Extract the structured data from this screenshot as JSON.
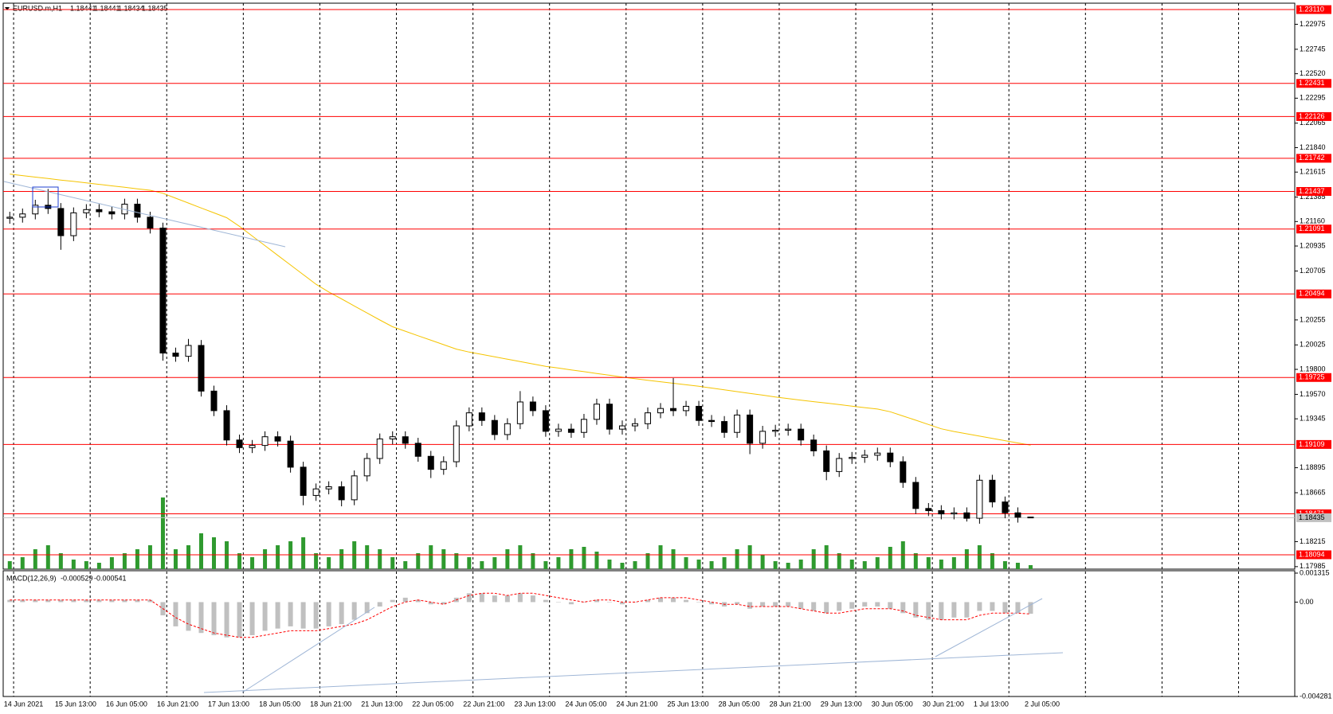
{
  "chart_data": {
    "type": "candlestick",
    "title": "EURUSD.m,H1",
    "categories": [
      "14 Jun 2021",
      null,
      null,
      null,
      "15 Jun 13:00",
      null,
      null,
      null,
      "16 Jun 05:00",
      null,
      null,
      null,
      "16 Jun 21:00",
      null,
      null,
      null,
      "17 Jun 13:00",
      null,
      null,
      null,
      "18 Jun 05:00",
      null,
      null,
      null,
      "18 Jun 21:00",
      null,
      null,
      null,
      "21 Jun 13:00",
      null,
      null,
      null,
      "22 Jun 05:00",
      null,
      null,
      null,
      "22 Jun 21:00",
      null,
      null,
      null,
      "23 Jun 13:00",
      null,
      null,
      null,
      "24 Jun 05:00",
      null,
      null,
      null,
      "24 Jun 21:00",
      null,
      null,
      null,
      "25 Jun 13:00",
      null,
      null,
      null,
      "28 Jun 05:00",
      null,
      null,
      null,
      "28 Jun 21:00",
      null,
      null,
      null,
      "29 Jun 13:00",
      null,
      null,
      null,
      "30 Jun 05:00",
      null,
      null,
      null,
      "30 Jun 21:00",
      null,
      null,
      null,
      "1 Jul 13:00",
      null,
      null,
      null,
      "2 Jul 05:00"
    ],
    "open": [
      1.2119,
      1.212,
      1.2123,
      1.2131,
      1.2128,
      1.2103,
      1.2124,
      1.2127,
      1.2125,
      1.2123,
      1.2132,
      1.212,
      1.211,
      1.1995,
      1.1992,
      1.2002,
      1.196,
      1.1942,
      1.1915,
      1.1908,
      1.191,
      1.1918,
      1.1914,
      1.189,
      1.1864,
      1.187,
      1.1872,
      1.186,
      1.1882,
      1.1898,
      1.1916,
      1.1918,
      1.1912,
      1.19,
      1.1888,
      1.1895,
      1.1928,
      1.194,
      1.1933,
      1.192,
      1.193,
      1.195,
      1.1942,
      1.1923,
      1.1925,
      1.1922,
      1.1934,
      1.1948,
      1.1925,
      1.1928,
      1.193,
      1.194,
      1.1944,
      1.1942,
      1.1946,
      1.1933,
      1.1932,
      1.1922,
      1.1938,
      1.1912,
      1.1923,
      1.1924,
      1.1925,
      1.1915,
      1.1905,
      1.1886,
      1.1898,
      1.1899,
      1.1901,
      1.1903,
      1.1895,
      1.1876,
      1.1852,
      1.185,
      1.1847,
      1.1848,
      1.1843,
      1.1878,
      1.1858,
      1.1848,
      1.18441
    ],
    "high": [
      1.2125,
      1.2128,
      1.2136,
      1.2146,
      1.2133,
      1.2129,
      1.2132,
      1.2132,
      1.213,
      1.2137,
      1.2137,
      1.2125,
      1.2115,
      1.2,
      1.2008,
      1.2007,
      1.1965,
      1.1947,
      1.192,
      1.1915,
      1.1923,
      1.1923,
      1.1919,
      1.1895,
      1.1875,
      1.1877,
      1.1877,
      1.1887,
      1.1903,
      1.1921,
      1.1923,
      1.1923,
      1.1917,
      1.1905,
      1.19,
      1.1933,
      1.1945,
      1.1945,
      1.1938,
      1.1935,
      1.196,
      1.1955,
      1.1947,
      1.193,
      1.193,
      1.1939,
      1.1953,
      1.1953,
      1.1933,
      1.1935,
      1.1945,
      1.1949,
      1.1972,
      1.1951,
      1.1951,
      1.1938,
      1.1937,
      1.1943,
      1.1943,
      1.1928,
      1.1929,
      1.193,
      1.193,
      1.192,
      1.191,
      1.1903,
      1.1904,
      1.1906,
      1.1908,
      1.1908,
      1.19,
      1.1881,
      1.1857,
      1.1855,
      1.1853,
      1.1853,
      1.1883,
      1.1883,
      1.1863,
      1.1853,
      1.18441
    ],
    "low": [
      1.2114,
      1.2115,
      1.2118,
      1.2123,
      1.209,
      1.2098,
      1.2119,
      1.212,
      1.2118,
      1.2118,
      1.2115,
      1.2105,
      1.1988,
      1.1987,
      1.1987,
      1.1955,
      1.1937,
      1.191,
      1.1903,
      1.1903,
      1.1905,
      1.1909,
      1.1885,
      1.1855,
      1.1859,
      1.1865,
      1.1854,
      1.1855,
      1.1877,
      1.1893,
      1.1911,
      1.1907,
      1.1895,
      1.188,
      1.1883,
      1.189,
      1.1923,
      1.1928,
      1.1915,
      1.1915,
      1.1925,
      1.1937,
      1.1918,
      1.1918,
      1.1917,
      1.1917,
      1.1929,
      1.192,
      1.192,
      1.1923,
      1.1925,
      1.1935,
      1.1937,
      1.1937,
      1.1928,
      1.1927,
      1.1917,
      1.1917,
      1.1902,
      1.1907,
      1.1918,
      1.1919,
      1.191,
      1.19,
      1.1878,
      1.1881,
      1.1893,
      1.1894,
      1.1896,
      1.189,
      1.1871,
      1.1847,
      1.1845,
      1.1842,
      1.1842,
      1.184,
      1.1838,
      1.1853,
      1.1843,
      1.1839,
      1.18434
    ],
    "close": [
      1.212,
      1.2123,
      1.2131,
      1.2128,
      1.2103,
      1.2124,
      1.2127,
      1.2125,
      1.2123,
      1.2132,
      1.212,
      1.211,
      1.1995,
      1.1992,
      1.2002,
      1.196,
      1.1942,
      1.1915,
      1.1908,
      1.191,
      1.1918,
      1.1914,
      1.189,
      1.1864,
      1.187,
      1.1872,
      1.186,
      1.1882,
      1.1898,
      1.1916,
      1.1918,
      1.1912,
      1.19,
      1.1888,
      1.1895,
      1.1928,
      1.194,
      1.1933,
      1.192,
      1.193,
      1.195,
      1.1942,
      1.1923,
      1.1925,
      1.1922,
      1.1934,
      1.1948,
      1.1925,
      1.1928,
      1.193,
      1.194,
      1.1944,
      1.1942,
      1.1946,
      1.1933,
      1.1932,
      1.1922,
      1.1938,
      1.1912,
      1.1923,
      1.1924,
      1.1925,
      1.1915,
      1.1905,
      1.1886,
      1.1898,
      1.1899,
      1.1901,
      1.1903,
      1.1895,
      1.1876,
      1.1852,
      1.185,
      1.1847,
      1.1848,
      1.1843,
      1.1878,
      1.1858,
      1.1848,
      1.1844,
      1.18435
    ],
    "ma": {
      "color": "#f5c400",
      "values": [
        1.21596,
        1.21583,
        1.21569,
        1.21556,
        1.21542,
        1.21529,
        1.21515,
        1.21502,
        1.21488,
        1.21475,
        1.21461,
        1.21448,
        1.2142,
        1.21375,
        1.2133,
        1.21285,
        1.2124,
        1.21195,
        1.21116,
        1.21027,
        1.20938,
        1.20849,
        1.2076,
        1.20672,
        1.20583,
        1.20512,
        1.20448,
        1.20383,
        1.20319,
        1.20254,
        1.20192,
        1.20151,
        1.20109,
        1.20068,
        1.20027,
        1.19986,
        1.19959,
        1.19937,
        1.19915,
        1.19893,
        1.19872,
        1.1985,
        1.19828,
        1.19812,
        1.19795,
        1.19779,
        1.19762,
        1.19746,
        1.19729,
        1.19714,
        1.197,
        1.19686,
        1.19672,
        1.19658,
        1.19644,
        1.19628,
        1.19612,
        1.19595,
        1.19579,
        1.19563,
        1.19546,
        1.19531,
        1.19517,
        1.19503,
        1.1949,
        1.19476,
        1.19462,
        1.19448,
        1.19435,
        1.1941,
        1.19371,
        1.19332,
        1.19293,
        1.19253,
        1.19228,
        1.19207,
        1.19186,
        1.19165,
        1.19144,
        1.19123,
        1.19102
      ]
    },
    "volume": {
      "color": "#2f9a2f",
      "values": [
        10,
        15,
        25,
        30,
        20,
        12,
        10,
        8,
        15,
        20,
        25,
        30,
        90,
        25,
        30,
        45,
        40,
        35,
        20,
        15,
        25,
        30,
        35,
        40,
        20,
        15,
        25,
        35,
        30,
        25,
        15,
        10,
        20,
        30,
        25,
        20,
        15,
        10,
        15,
        25,
        30,
        20,
        10,
        15,
        25,
        28,
        22,
        12,
        8,
        10,
        20,
        30,
        25,
        15,
        12,
        10,
        15,
        25,
        30,
        18,
        10,
        8,
        12,
        25,
        30,
        20,
        12,
        10,
        15,
        28,
        35,
        20,
        15,
        12,
        15,
        25,
        30,
        20,
        10,
        8,
        5
      ]
    },
    "levels": {
      "color": "#ff0000",
      "values": [
        {
          "value": 1.2311,
          "label": "1.23110"
        },
        1.22431,
        1.22126,
        1.21742,
        1.21437,
        1.21091,
        1.20494,
        1.19725,
        1.19109,
        1.18471,
        1.18094
      ]
    },
    "ylim": [
      1.17962,
      1.23169
    ],
    "yticks": [
      1.22975,
      1.22745,
      {
        "value": 1.2252,
        "label": "1.22520"
      },
      1.22295,
      1.22065,
      {
        "value": 1.2184,
        "label": "1.21840"
      },
      1.21615,
      1.21385,
      {
        "value": 1.2116,
        "label": "1.21160"
      },
      1.20935,
      1.20705,
      1.20255,
      1.20025,
      {
        "value": 1.198,
        "label": "1.19800"
      },
      {
        "value": 1.1957,
        "label": "1.19570"
      },
      1.19345,
      1.18895,
      1.18665,
      1.18215,
      1.17985
    ],
    "grid": true,
    "macd": {
      "title": "MACD(12,26,9)",
      "ylim": [
        -0.004281,
        0.001315
      ],
      "yticks": [
        0.001315,
        {
          "value": 0,
          "label": "0.00"
        },
        -0.004281
      ],
      "histogram": {
        "color": "#c0c0c0",
        "values": [
          0.0001,
          0.0001,
          0.0001,
          0.0001,
          0.0001,
          0.0001,
          0.0001,
          0.0001,
          0.0001,
          0.0001,
          0.0001,
          0.0001,
          -0.0006,
          -0.0011,
          -0.0013,
          -0.0014,
          -0.0015,
          -0.0016,
          -0.0016,
          -0.0015,
          -0.0013,
          -0.0012,
          -0.0011,
          -0.0012,
          -0.0012,
          -0.0011,
          -0.001,
          -0.0008,
          -0.0005,
          -0.0002,
          0.0001,
          0.0002,
          0.0001,
          -0.0001,
          -0.0001,
          0.0002,
          0.0004,
          0.0004,
          0.0003,
          0.0003,
          0.0004,
          0.0003,
          0.0001,
          0,
          -0.0001,
          0,
          0.0001,
          0,
          -0.0001,
          0,
          0.0001,
          0.0002,
          0.0002,
          0.0001,
          0,
          -0.0001,
          -0.0002,
          -0.0001,
          -0.0003,
          -0.0002,
          -0.0002,
          -0.0002,
          -0.0003,
          -0.0004,
          -0.0005,
          -0.0004,
          -0.0003,
          -0.0002,
          -0.0002,
          -0.0003,
          -0.0005,
          -0.0007,
          -0.0008,
          -0.0008,
          -0.0007,
          -0.0007,
          -0.0004,
          -0.0004,
          -0.0005,
          -0.0005,
          -0.000529
        ]
      },
      "signal": {
        "color": "#ff0000",
        "values": [
          0.0001,
          0.0001,
          0.0001,
          0.0001,
          0.0001,
          0.0001,
          0.0001,
          0.0001,
          0.0001,
          0.0001,
          0.0001,
          0.0001,
          -0.0003,
          -0.0007,
          -0.001,
          -0.0012,
          -0.0014,
          -0.0015,
          -0.0016,
          -0.0016,
          -0.0015,
          -0.0014,
          -0.0013,
          -0.0013,
          -0.0013,
          -0.0012,
          -0.0011,
          -0.001,
          -0.0008,
          -0.0005,
          -0.0002,
          0,
          0.0001,
          0,
          -0.0001,
          0.0001,
          0.0003,
          0.0004,
          0.0004,
          0.0003,
          0.0004,
          0.0004,
          0.0003,
          0.0002,
          0.0001,
          0,
          0.0001,
          0.0001,
          0,
          0,
          0.0001,
          0.0002,
          0.0002,
          0.0002,
          0.0001,
          0,
          -0.0001,
          -0.0001,
          -0.0002,
          -0.0002,
          -0.0002,
          -0.0002,
          -0.0003,
          -0.0004,
          -0.0005,
          -0.0005,
          -0.0004,
          -0.0003,
          -0.0003,
          -0.0003,
          -0.0004,
          -0.0006,
          -0.0007,
          -0.0008,
          -0.0008,
          -0.0008,
          -0.0006,
          -0.0005,
          -0.0005,
          -0.0005,
          -0.000541
        ]
      }
    }
  }
}
